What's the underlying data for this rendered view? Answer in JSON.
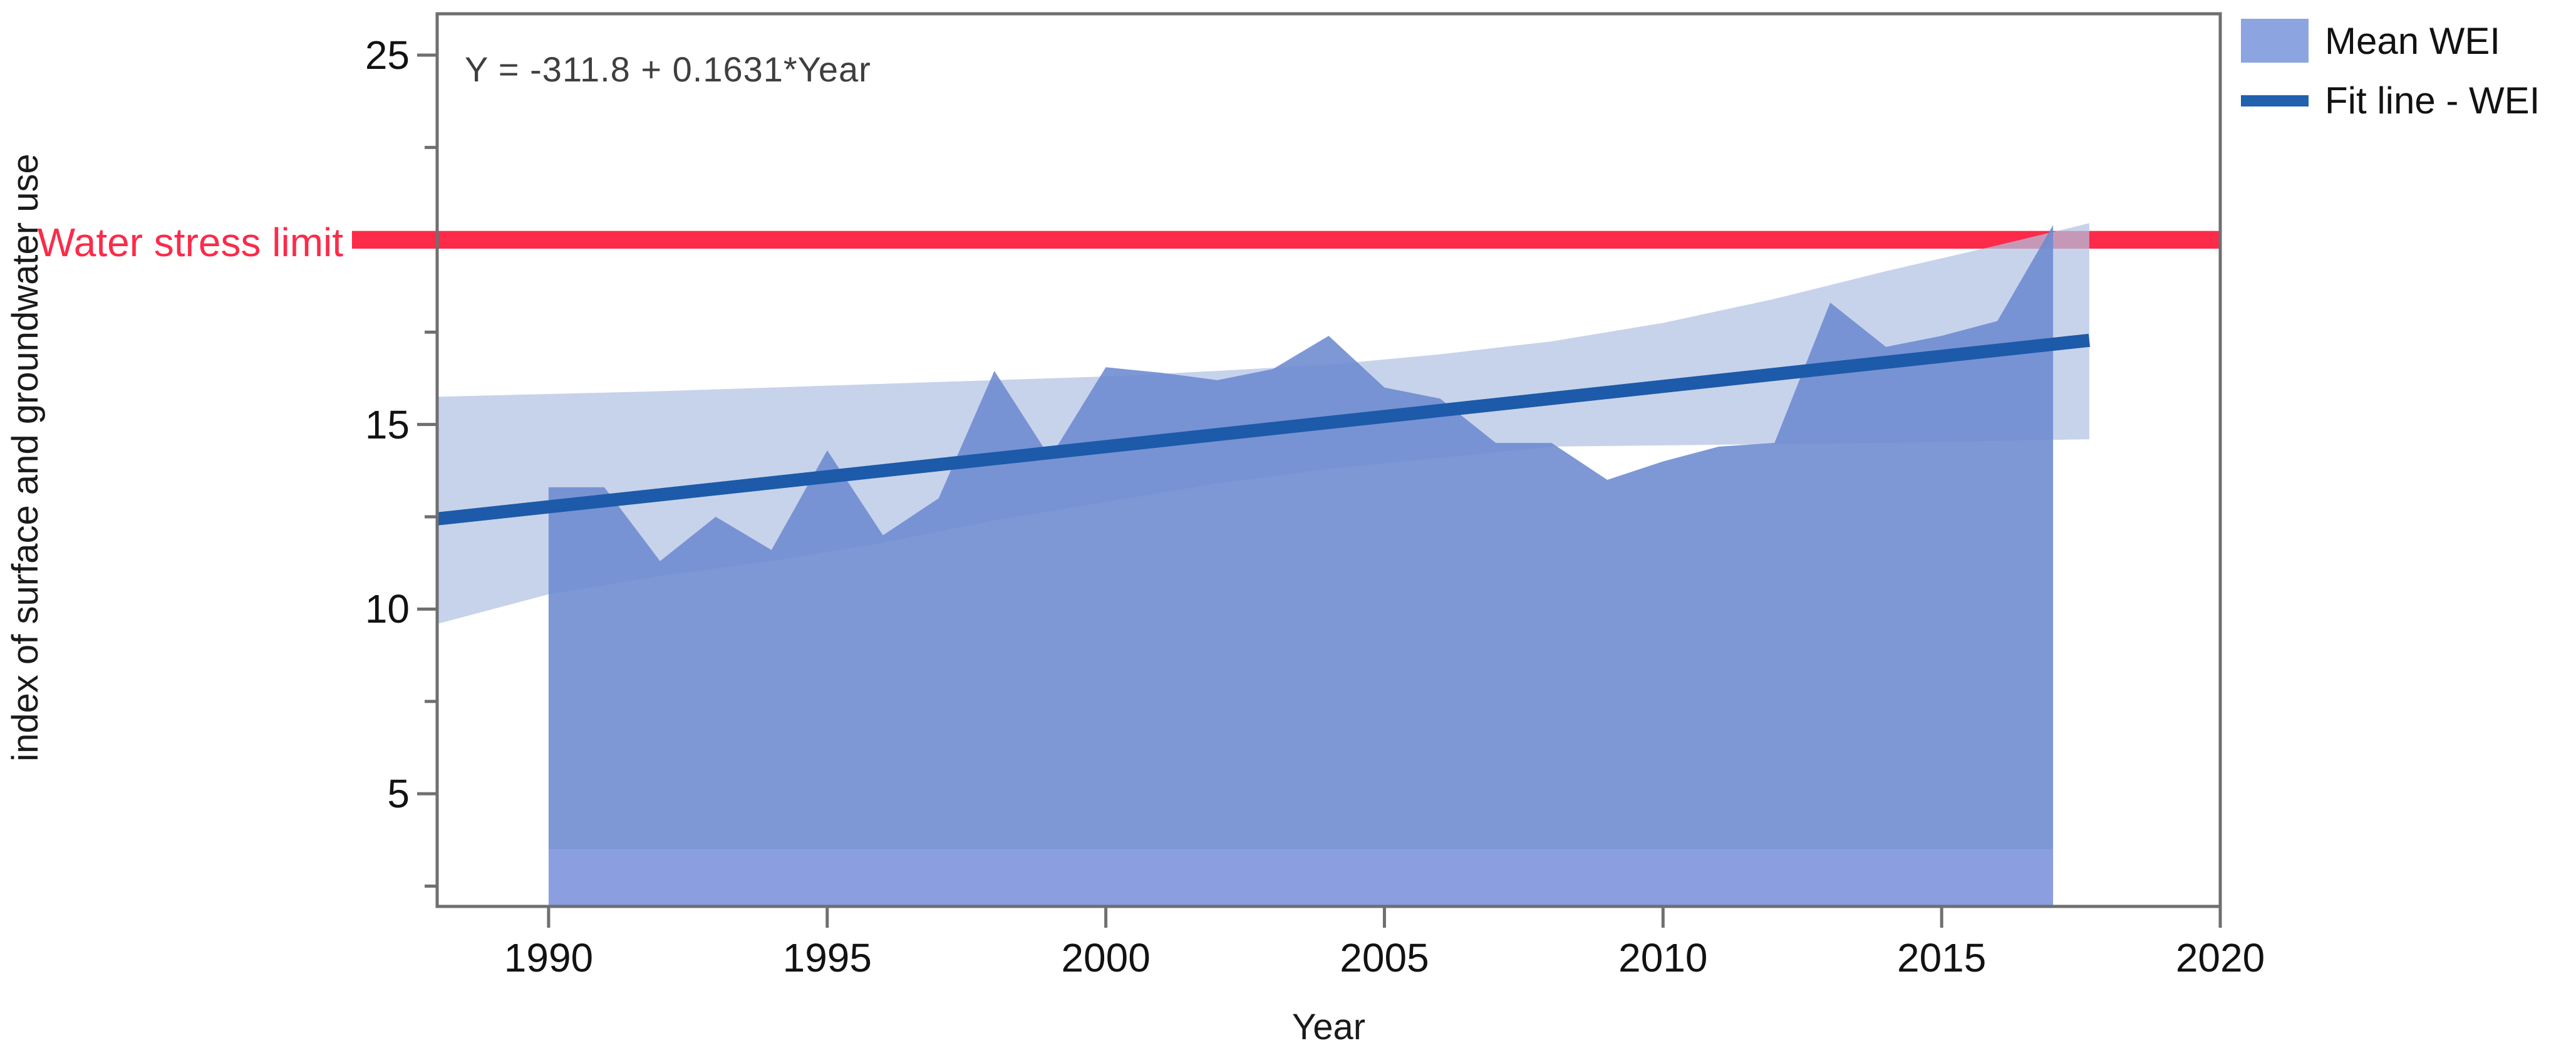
{
  "figure": {
    "kind": "regression-area-plot",
    "background": "#ffffff",
    "border_color": "#6f6f6f"
  },
  "annotation": {
    "equation": "Y = -311.8 + 0.1631*Year",
    "stress_label": "Water stress limit"
  },
  "legend": {
    "items": [
      {
        "label": "Mean WEI",
        "type": "area",
        "color": "#8ca4df"
      },
      {
        "label": "Fit line - WEI",
        "type": "line",
        "color": "#2161ae"
      }
    ]
  },
  "x_axis": {
    "title": "Year",
    "tick_labels": [
      "1990",
      "1995",
      "2000",
      "2005",
      "2010",
      "2015",
      "2020"
    ]
  },
  "y_axis": {
    "title": "index of surface and groundwater use",
    "tick_labels": [
      "25",
      "15",
      "10",
      "5"
    ],
    "tick_values_labeled": [
      25,
      15,
      10,
      5
    ]
  },
  "chart_data": {
    "type": "area",
    "title": "",
    "xlabel": "Year",
    "ylabel": "index of surface and groundwater use",
    "xlim": [
      1988,
      2020
    ],
    "ylim": [
      1.95,
      26.12
    ],
    "x_ticks": [
      1990,
      1995,
      2000,
      2005,
      2010,
      2015,
      2020
    ],
    "y_ticks_major": [
      5,
      10,
      15,
      20,
      25
    ],
    "y_ticks_minor": [
      2.5,
      7.5,
      12.5,
      17.5,
      22.5
    ],
    "grid": false,
    "legend_position": "top-right-outside",
    "series": [
      {
        "name": "Mean WEI",
        "type": "area",
        "fill": "rgba(108,138,208,0.88)",
        "years": [
          1990,
          1991,
          1992,
          1993,
          1994,
          1995,
          1996,
          1997,
          1998,
          1999,
          2000,
          2001,
          2002,
          2003,
          2004,
          2005,
          2006,
          2007,
          2008,
          2009,
          2010,
          2011,
          2012,
          2013,
          2014,
          2015,
          2016,
          2017
        ],
        "values": [
          13.3,
          13.3,
          11.3,
          12.5,
          11.6,
          14.3,
          12.0,
          13.0,
          16.45,
          14.1,
          16.55,
          16.4,
          16.2,
          16.5,
          17.4,
          16.0,
          15.7,
          14.5,
          14.5,
          13.5,
          14.0,
          14.4,
          14.5,
          18.3,
          17.1,
          17.4,
          17.8,
          20.4
        ]
      },
      {
        "name": "Fit line - WEI",
        "type": "line",
        "color": "#1d5aa9",
        "intercept": -311.8,
        "slope": 0.1631,
        "x_start": 1988,
        "x_end": 2017.65,
        "stroke_width": 21
      }
    ],
    "confidence_band": {
      "fill": "rgba(178,194,226,0.72)",
      "top": [
        [
          1988,
          15.75
        ],
        [
          1992,
          15.9
        ],
        [
          1996,
          16.1
        ],
        [
          2000,
          16.3
        ],
        [
          2002,
          16.45
        ],
        [
          2004,
          16.62
        ],
        [
          2006,
          16.9
        ],
        [
          2008,
          17.25
        ],
        [
          2010,
          17.75
        ],
        [
          2012,
          18.4
        ],
        [
          2014,
          19.15
        ],
        [
          2016,
          19.85
        ],
        [
          2017.65,
          20.45
        ]
      ],
      "bottom": [
        [
          1988,
          9.6
        ],
        [
          1990,
          10.4
        ],
        [
          1992,
          10.9
        ],
        [
          1994,
          11.3
        ],
        [
          1996,
          11.8
        ],
        [
          1998,
          12.4
        ],
        [
          2000,
          12.9
        ],
        [
          2002,
          13.4
        ],
        [
          2004,
          13.8
        ],
        [
          2006,
          14.1
        ],
        [
          2008,
          14.4
        ],
        [
          2011,
          14.45
        ],
        [
          2014,
          14.5
        ],
        [
          2017.65,
          14.6
        ]
      ]
    },
    "reference_line": {
      "label": "Water stress limit",
      "value": 20,
      "half_thickness": 0.24,
      "color": "#fb2b49",
      "extends_left_of_axis": true
    },
    "baseline_strip": {
      "from_value": 1.95,
      "to_value": 3.48,
      "fill": "#8b9ee0",
      "note": "lighter strip along bottom of area between x 1990 and 2017"
    }
  }
}
